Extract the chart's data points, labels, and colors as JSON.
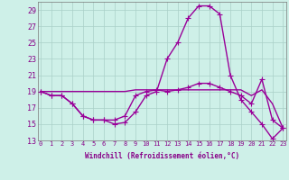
{
  "xlabel": "Windchill (Refroidissement éolien,°C)",
  "hours": [
    0,
    1,
    2,
    3,
    4,
    5,
    6,
    7,
    8,
    9,
    10,
    11,
    12,
    13,
    14,
    15,
    16,
    17,
    18,
    19,
    20,
    21,
    22,
    23
  ],
  "line_spike": [
    19,
    18.5,
    18.5,
    17.5,
    16.0,
    15.5,
    15.5,
    15.0,
    15.2,
    16.5,
    18.5,
    19.0,
    23.0,
    25.0,
    28.0,
    29.5,
    29.5,
    28.5,
    21.0,
    18.0,
    16.5,
    15.0,
    13.2,
    14.5
  ],
  "line_mid": [
    19,
    18.5,
    18.5,
    17.5,
    16.0,
    15.5,
    15.5,
    15.5,
    16.0,
    18.5,
    19.0,
    19.2,
    19.0,
    19.2,
    19.5,
    20.0,
    20.0,
    19.5,
    19.0,
    18.5,
    17.5,
    20.5,
    15.5,
    14.5
  ],
  "line_flat": [
    19,
    19.0,
    19.0,
    19.0,
    19.0,
    19.0,
    19.0,
    19.0,
    19.0,
    19.2,
    19.2,
    19.2,
    19.2,
    19.2,
    19.2,
    19.2,
    19.2,
    19.2,
    19.2,
    19.2,
    18.5,
    19.2,
    17.5,
    14.5
  ],
  "ylim": [
    13,
    30
  ],
  "yticks": [
    13,
    15,
    17,
    19,
    21,
    23,
    25,
    27,
    29
  ],
  "bg_color": "#cef0e8",
  "grid_color": "#aacfc8",
  "line_color": "#990099",
  "line_width": 1.0,
  "marker": "+",
  "marker_size": 4,
  "tick_color": "#880088",
  "label_fontsize": 5,
  "xlabel_fontsize": 5.5
}
